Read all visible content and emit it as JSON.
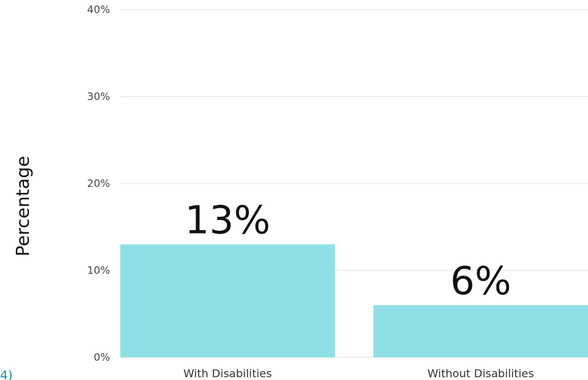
{
  "chart_data": {
    "type": "bar",
    "title": "",
    "xlabel": "",
    "ylabel": "Percentage",
    "categories": [
      "With Disabilities",
      "Without Disabilities"
    ],
    "values": [
      13,
      6
    ],
    "data_labels": [
      "13%",
      "6%"
    ],
    "ylim": [
      0,
      40
    ],
    "yticks": [
      0,
      10,
      20,
      30,
      40
    ],
    "ytick_labels": [
      "0%",
      "10%",
      "20%",
      "30%",
      "40%"
    ],
    "grid": true,
    "legend": "none",
    "bar_color": "#8fe0e6",
    "gridline_color": "#e6e6e6",
    "axis_color": "#d8d8d8"
  },
  "corner_fragment": "4)"
}
